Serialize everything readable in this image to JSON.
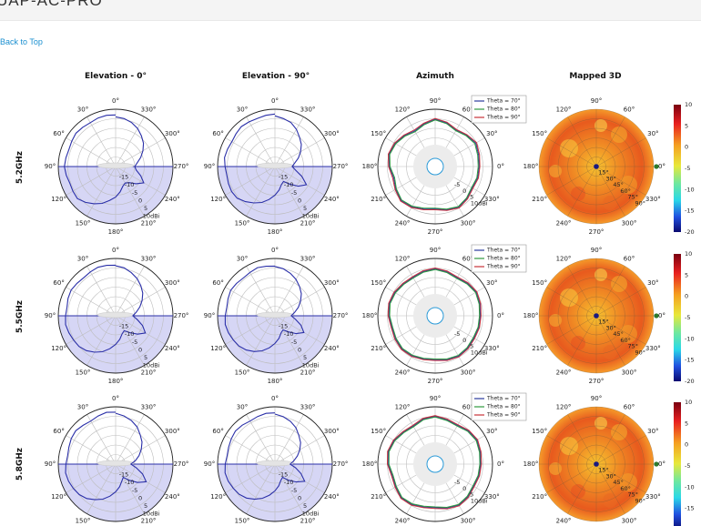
{
  "header": {
    "title": "UAP-AC-PRO",
    "back_link": "Back to Top"
  },
  "columns": [
    "Elevation - 0°",
    "Elevation - 90°",
    "Azimuth",
    "Mapped 3D"
  ],
  "rows": [
    "5.2GHz",
    "5.5GHz",
    "5.8GHz"
  ],
  "chart_data": {
    "type": "polar-grid",
    "elevation_angle_labels": [
      "0°",
      "30°",
      "60°",
      "90°",
      "120°",
      "150°",
      "180°",
      "210°",
      "240°",
      "270°",
      "300°",
      "330°"
    ],
    "azimuth_angle_labels": [
      "90°",
      "60°",
      "30°",
      "0°",
      "330°",
      "300°",
      "270°",
      "240°",
      "210°",
      "180°",
      "150°",
      "120°"
    ],
    "radial_labels": [
      "-15",
      "-10",
      "-5",
      "0",
      "5",
      "10dBi"
    ],
    "rlim": [
      -20,
      10
    ],
    "legend": [
      "Theta = 70°",
      "Theta = 80°",
      "Theta = 90°"
    ],
    "legend_colors": [
      "#2a3b9c",
      "#2e9a3e",
      "#c8323a"
    ],
    "elevation_color": "#2a2fa8",
    "mapped_radial_labels": [
      "15°",
      "30°",
      "45°",
      "60°",
      "75°",
      "90°"
    ],
    "colorbar_ticks": [
      "10",
      "5",
      "0",
      "-5",
      "-10",
      "-15",
      "-20"
    ],
    "colorbar_range": [
      -20,
      10
    ],
    "gain": {
      "5.2GHz": {
        "elev0": [
          7.0,
          7.2,
          7.0,
          6.5,
          6.8,
          7.1,
          6.5,
          6.0,
          6.4,
          6.8,
          6.2,
          5.5,
          5.8,
          6.1,
          4.5,
          2.5,
          0.5,
          -2.0,
          -4.0,
          -6.5,
          -9.0,
          -10.0,
          -9.0,
          -6.0,
          -3.0,
          -6.0,
          -9.0,
          -10.0,
          -8.5,
          -6.0,
          -3.5,
          -1.0,
          1.0,
          3.0,
          4.5,
          5.5,
          6.0
        ],
        "elev90": [
          7.5,
          7.2,
          6.8,
          7.0,
          7.3,
          6.6,
          6.0,
          6.4,
          6.8,
          6.1,
          5.6,
          5.9,
          6.2,
          5.8,
          4.0,
          2.0,
          0.0,
          -2.5,
          -5.0,
          -7.5,
          -10.0,
          -11.0,
          -8.0,
          -4.0,
          -1.0,
          -5.0,
          -9.0,
          -11.0,
          -9.5,
          -7.0,
          -4.5,
          -2.0,
          0.0,
          2.5,
          4.5,
          5.5,
          6.5
        ],
        "azimuth": [
          [
            3.0,
            3.5,
            4.5,
            3.2,
            2.0,
            3.6,
            4.8,
            3.0,
            1.5,
            2.8,
            4.2,
            5.0,
            4.0,
            2.5,
            3.8,
            5.2,
            4.4,
            3.0,
            2.2,
            3.4,
            4.6,
            3.6,
            2.4,
            3.0
          ],
          [
            2.5,
            3.0,
            4.0,
            2.8,
            1.6,
            3.2,
            4.4,
            2.6,
            1.0,
            2.4,
            3.8,
            4.6,
            3.6,
            2.0,
            3.4,
            4.8,
            4.0,
            2.6,
            1.8,
            3.0,
            4.2,
            3.2,
            2.0,
            2.6
          ],
          [
            3.4,
            4.0,
            5.0,
            3.6,
            2.4,
            4.0,
            5.2,
            3.4,
            2.0,
            3.2,
            4.6,
            5.4,
            4.4,
            3.0,
            4.2,
            5.6,
            4.8,
            3.4,
            2.6,
            3.8,
            5.0,
            4.0,
            2.8,
            3.4
          ]
        ]
      },
      "5.5GHz": {
        "elev0": [
          6.5,
          6.8,
          7.0,
          6.5,
          6.0,
          6.4,
          6.9,
          6.5,
          5.8,
          6.2,
          6.6,
          6.0,
          5.4,
          5.0,
          3.8,
          2.0,
          0.0,
          -2.5,
          -5.0,
          -7.5,
          -10.0,
          -11.0,
          -8.5,
          -5.0,
          -2.0,
          -5.0,
          -8.5,
          -11.0,
          -9.0,
          -6.5,
          -4.0,
          -1.5,
          0.5,
          2.5,
          4.0,
          5.5,
          6.2
        ],
        "elev90": [
          6.0,
          6.3,
          6.8,
          6.2,
          5.8,
          6.3,
          6.7,
          6.1,
          5.6,
          6.0,
          6.4,
          5.9,
          5.2,
          4.6,
          3.4,
          1.6,
          -0.5,
          -3.0,
          -5.5,
          -8.0,
          -10.5,
          -11.5,
          -9.0,
          -5.5,
          -2.5,
          -5.5,
          -9.0,
          -11.5,
          -9.5,
          -7.0,
          -4.5,
          -2.0,
          0.0,
          2.0,
          3.6,
          5.0,
          5.8
        ],
        "azimuth": [
          [
            3.6,
            4.2,
            4.8,
            4.0,
            3.0,
            3.8,
            4.6,
            4.0,
            3.2,
            3.6,
            4.4,
            4.8,
            4.2,
            3.4,
            4.0,
            4.6,
            4.2,
            3.4,
            3.0,
            3.8,
            4.4,
            4.0,
            3.4,
            3.6
          ],
          [
            3.2,
            3.8,
            4.4,
            3.6,
            2.6,
            3.4,
            4.2,
            3.6,
            2.8,
            3.2,
            4.0,
            4.4,
            3.8,
            3.0,
            3.6,
            4.2,
            3.8,
            3.0,
            2.6,
            3.4,
            4.0,
            3.6,
            3.0,
            3.2
          ],
          [
            4.0,
            4.6,
            5.2,
            4.4,
            3.4,
            4.2,
            5.0,
            4.4,
            3.6,
            4.0,
            4.8,
            5.2,
            4.6,
            3.8,
            4.4,
            5.0,
            4.6,
            3.8,
            3.4,
            4.2,
            4.8,
            4.4,
            3.8,
            4.0
          ]
        ]
      },
      "5.8GHz": {
        "elev0": [
          7.2,
          7.5,
          6.8,
          6.0,
          6.5,
          7.2,
          6.8,
          6.0,
          5.5,
          6.0,
          6.6,
          6.2,
          5.5,
          4.8,
          3.5,
          1.5,
          -0.5,
          -3.0,
          -5.5,
          -8.0,
          -10.5,
          -12.0,
          -9.0,
          -5.0,
          -1.5,
          -5.0,
          -9.0,
          -12.0,
          -9.5,
          -7.0,
          -4.5,
          -2.0,
          0.0,
          2.5,
          4.2,
          5.6,
          6.6
        ],
        "elev90": [
          6.8,
          7.0,
          6.5,
          6.0,
          6.6,
          7.0,
          6.4,
          5.8,
          5.4,
          6.0,
          6.5,
          6.0,
          5.2,
          4.5,
          3.2,
          1.2,
          -1.0,
          -3.5,
          -6.0,
          -8.5,
          -11.0,
          -12.0,
          -9.0,
          -5.5,
          -2.0,
          -5.5,
          -9.0,
          -12.0,
          -10.0,
          -7.5,
          -5.0,
          -2.5,
          -0.5,
          2.0,
          3.8,
          5.2,
          6.2
        ],
        "azimuth": [
          [
            3.8,
            4.4,
            5.2,
            4.6,
            3.4,
            4.0,
            5.0,
            4.4,
            3.0,
            3.6,
            4.8,
            5.4,
            4.6,
            3.2,
            3.8,
            5.0,
            4.4,
            3.2,
            2.8,
            3.8,
            4.8,
            4.2,
            3.2,
            3.6
          ],
          [
            3.4,
            4.0,
            4.8,
            4.2,
            3.0,
            3.6,
            4.6,
            4.0,
            2.6,
            3.2,
            4.4,
            5.0,
            4.2,
            2.8,
            3.4,
            4.6,
            4.0,
            2.8,
            2.4,
            3.4,
            4.4,
            3.8,
            2.8,
            3.2
          ],
          [
            4.2,
            4.8,
            5.6,
            5.0,
            3.8,
            4.4,
            5.4,
            4.8,
            3.4,
            4.0,
            5.2,
            5.8,
            5.0,
            3.6,
            4.2,
            5.4,
            4.8,
            3.6,
            3.2,
            4.2,
            5.2,
            4.6,
            3.6,
            4.0
          ]
        ]
      }
    }
  }
}
